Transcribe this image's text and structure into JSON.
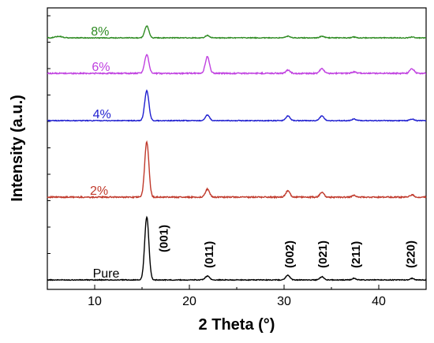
{
  "chart_data": {
    "type": "line",
    "xlabel": "2 Theta (°)",
    "ylabel": "Intensity (a.u.)",
    "xlim": [
      5,
      45
    ],
    "x_ticks": [
      10,
      20,
      30,
      40
    ],
    "y_ticks_shown": false,
    "grid": false,
    "series": [
      {
        "name": "Pure",
        "color": "#000000",
        "offset": 0,
        "peaks": [
          {
            "x": 15.5,
            "height": 80
          },
          {
            "x": 21.9,
            "height": 5
          },
          {
            "x": 30.4,
            "height": 6
          },
          {
            "x": 34.0,
            "height": 4
          },
          {
            "x": 37.4,
            "height": 2
          },
          {
            "x": 43.5,
            "height": 2
          }
        ]
      },
      {
        "name": "2%",
        "color": "#c0392b",
        "offset": 105,
        "peaks": [
          {
            "x": 15.5,
            "height": 70
          },
          {
            "x": 21.9,
            "height": 10
          },
          {
            "x": 30.4,
            "height": 8
          },
          {
            "x": 34.0,
            "height": 6
          },
          {
            "x": 37.4,
            "height": 2
          },
          {
            "x": 43.5,
            "height": 3
          }
        ]
      },
      {
        "name": "4%",
        "color": "#1f1fd0",
        "offset": 202,
        "peaks": [
          {
            "x": 15.5,
            "height": 38
          },
          {
            "x": 21.9,
            "height": 7
          },
          {
            "x": 30.4,
            "height": 6
          },
          {
            "x": 34.0,
            "height": 6
          },
          {
            "x": 37.4,
            "height": 2
          },
          {
            "x": 43.5,
            "height": 2
          }
        ]
      },
      {
        "name": "6%",
        "color": "#c040e0",
        "offset": 262,
        "peaks": [
          {
            "x": 15.5,
            "height": 24
          },
          {
            "x": 21.9,
            "height": 21
          },
          {
            "x": 30.4,
            "height": 4
          },
          {
            "x": 34.0,
            "height": 6
          },
          {
            "x": 37.4,
            "height": 2
          },
          {
            "x": 43.5,
            "height": 6
          }
        ]
      },
      {
        "name": "8%",
        "color": "#2e8b22",
        "offset": 307,
        "peaks": [
          {
            "x": 6.2,
            "height": 2
          },
          {
            "x": 15.5,
            "height": 15
          },
          {
            "x": 21.9,
            "height": 3
          },
          {
            "x": 30.4,
            "height": 2
          },
          {
            "x": 34.0,
            "height": 2
          },
          {
            "x": 37.4,
            "height": 1
          },
          {
            "x": 43.5,
            "height": 1
          }
        ]
      }
    ],
    "annotations": [
      {
        "text": "(001)",
        "x": 17.2
      },
      {
        "text": "(011)",
        "x": 22.0
      },
      {
        "text": "(002)",
        "x": 30.5
      },
      {
        "text": "(021)",
        "x": 34.0
      },
      {
        "text": "(211)",
        "x": 37.5
      },
      {
        "text": "(220)",
        "x": 43.3
      }
    ]
  }
}
